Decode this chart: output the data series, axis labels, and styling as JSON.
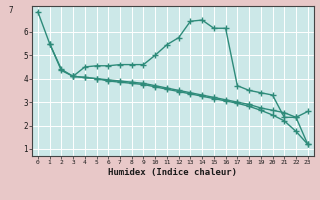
{
  "line1_x": [
    0,
    1,
    2,
    3,
    4,
    5,
    6,
    7,
    8,
    9,
    10,
    11,
    12,
    13,
    14,
    15,
    16,
    17,
    18,
    19,
    20,
    21,
    22,
    23
  ],
  "line1_y": [
    6.85,
    5.5,
    4.4,
    4.1,
    4.5,
    4.55,
    4.55,
    4.6,
    4.6,
    4.6,
    5.0,
    5.45,
    5.75,
    6.45,
    6.5,
    6.15,
    6.15,
    3.7,
    3.5,
    3.4,
    3.3,
    2.35,
    2.35,
    1.2
  ],
  "line2_x": [
    1,
    2,
    3,
    4,
    5,
    6,
    7,
    8,
    9,
    10,
    11,
    12,
    13,
    14,
    15,
    16,
    17,
    18,
    19,
    20,
    21,
    22,
    23
  ],
  "line2_y": [
    5.5,
    4.35,
    4.1,
    4.05,
    4.0,
    3.95,
    3.9,
    3.85,
    3.8,
    3.7,
    3.6,
    3.5,
    3.4,
    3.3,
    3.2,
    3.1,
    3.0,
    2.9,
    2.75,
    2.65,
    2.55,
    2.35,
    2.6
  ],
  "line3_x": [
    3,
    4,
    5,
    6,
    7,
    8,
    9,
    10,
    11,
    12,
    13,
    14,
    15,
    16,
    17,
    18,
    19,
    20,
    21,
    22,
    23
  ],
  "line3_y": [
    4.1,
    4.05,
    4.0,
    3.9,
    3.85,
    3.8,
    3.75,
    3.65,
    3.55,
    3.45,
    3.35,
    3.25,
    3.15,
    3.05,
    2.95,
    2.82,
    2.65,
    2.45,
    2.2,
    1.75,
    1.2
  ],
  "color": "#2e8b7a",
  "bg_color": "#cce8e8",
  "plot_bg": "#cce8e8",
  "outer_bg": "#e8c8c8",
  "grid_color": "#ffffff",
  "xlabel": "Humidex (Indice chaleur)",
  "xlim": [
    -0.5,
    23.5
  ],
  "ylim": [
    0.7,
    7.1
  ],
  "xticks": [
    0,
    1,
    2,
    3,
    4,
    5,
    6,
    7,
    8,
    9,
    10,
    11,
    12,
    13,
    14,
    15,
    16,
    17,
    18,
    19,
    20,
    21,
    22,
    23
  ],
  "yticks": [
    1,
    2,
    3,
    4,
    5,
    6
  ],
  "ytop_label": "7",
  "marker_size": 2.5,
  "line_width": 1.0
}
